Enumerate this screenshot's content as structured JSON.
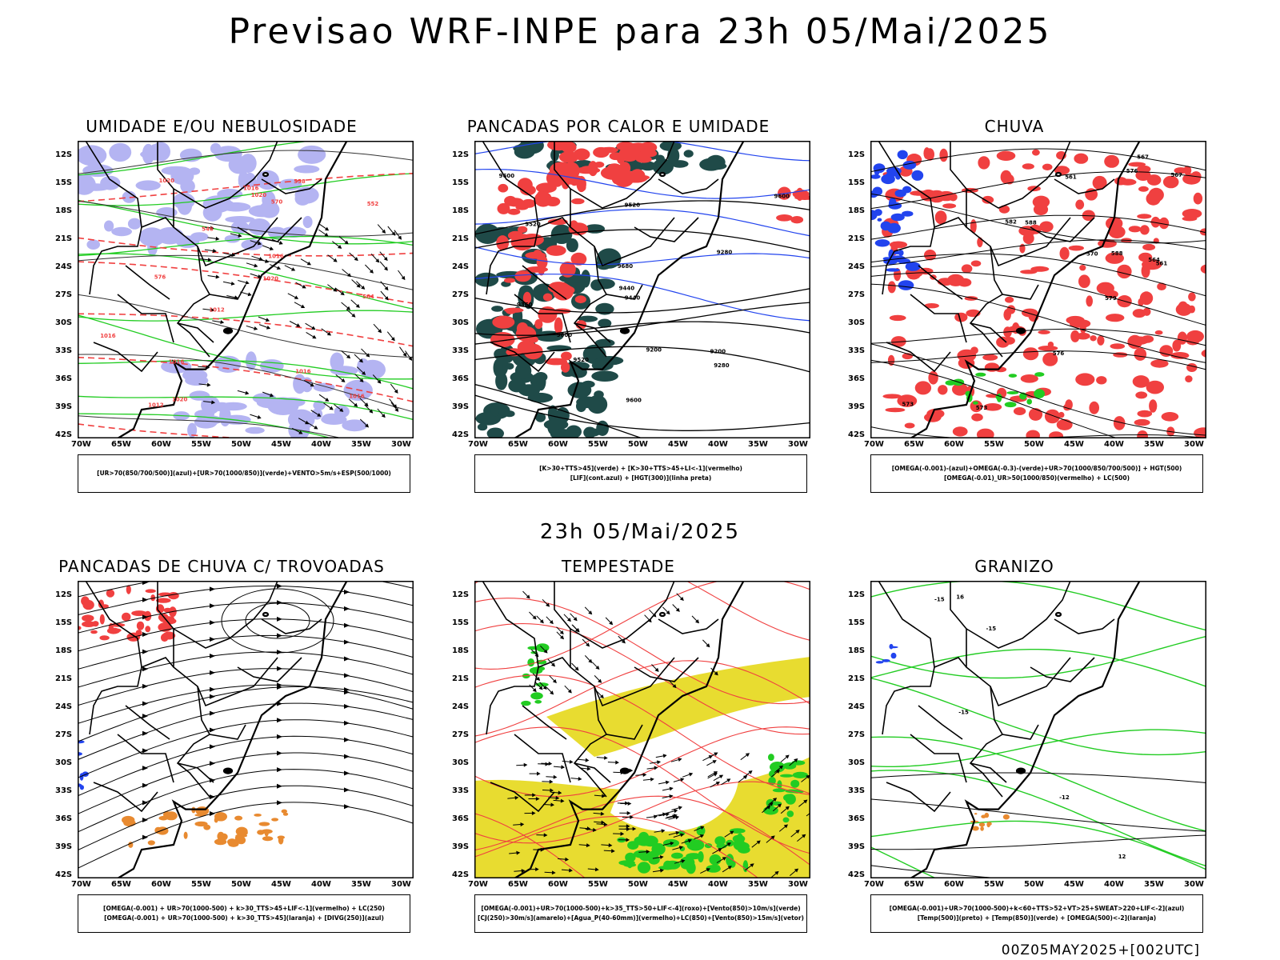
{
  "title": "Previsao WRF-INPE  para 23h 05/Mai/2025",
  "mid_date": "23h 05/Mai/2025",
  "footer": "00Z05MAY2025+[002UTC]",
  "colors": {
    "red": "#f04040",
    "green": "#22cc22",
    "blue": "#2244ee",
    "lavender": "#a8a8f0",
    "dark_teal": "#1f4a48",
    "yellow": "#e8dc30",
    "orange": "#e88a30",
    "black": "#000000"
  },
  "chart_data": [
    {
      "type": "map",
      "title": "UMIDADE E/OU NEBULOSIDADE",
      "legend": [
        "[UR>70(850/700/500)](azul)+[UR>70(1000/850)](verde)+VENTO>5m/s+ESP(500/1000)"
      ],
      "lat_ticks": [
        "12S",
        "15S",
        "18S",
        "21S",
        "24S",
        "27S",
        "30S",
        "33S",
        "36S",
        "39S",
        "42S"
      ],
      "lon_ticks": [
        "70W",
        "65W",
        "60W",
        "55W",
        "50W",
        "45W",
        "40W",
        "35W",
        "30W"
      ],
      "contour_labels": [
        "1012",
        "1012",
        "1016",
        "1016",
        "1020",
        "1016",
        "1020",
        "1020",
        "1016",
        "1020",
        "1016",
        "1016",
        "576",
        "570",
        "564",
        "558",
        "552",
        "546"
      ]
    },
    {
      "type": "map",
      "title": "PANCADAS POR CALOR E UMIDADE",
      "legend": [
        "[K>30+TTS>45](verde) + [K>30+TTS>45+LI<-1](vermelho)",
        "[LIF](cont.azul) + [HGT(300)](linha preta)"
      ],
      "lat_ticks": [
        "12S",
        "15S",
        "18S",
        "21S",
        "24S",
        "27S",
        "30S",
        "33S",
        "36S",
        "39S",
        "42S"
      ],
      "lon_ticks": [
        "70W",
        "65W",
        "60W",
        "55W",
        "50W",
        "45W",
        "40W",
        "35W",
        "30W"
      ],
      "contour_labels": [
        "9680",
        "9600",
        "9520",
        "9600",
        "9600",
        "9600",
        "9520",
        "9520",
        "9440",
        "9440",
        "9360",
        "9280",
        "9200",
        "9280",
        "9200"
      ]
    },
    {
      "type": "map",
      "title": "CHUVA",
      "legend": [
        "[OMEGA(-0.001)-(azul)+OMEGA(-0.3)-(verde)+UR>70(1000/850/700/500)] + HGT(500)",
        "[OMEGA(-0.01)_UR>50(1000/850)(vermelho) + LC(500)"
      ],
      "lat_ticks": [
        "12S",
        "15S",
        "18S",
        "21S",
        "24S",
        "27S",
        "30S",
        "33S",
        "36S",
        "39S",
        "42S"
      ],
      "lon_ticks": [
        "70W",
        "65W",
        "60W",
        "55W",
        "50W",
        "45W",
        "40W",
        "35W",
        "30W"
      ],
      "contour_labels": [
        "588",
        "588",
        "582",
        "579",
        "576",
        "573",
        "570",
        "567",
        "564",
        "561",
        "576",
        "573",
        "567",
        "561"
      ]
    },
    {
      "type": "map",
      "title": "PANCADAS DE CHUVA C/ TROVOADAS",
      "legend": [
        "[OMEGA(-0.001) + UR>70(1000-500) + k>30_TTS>45+LIF<-1](vermelho) + LC(250)",
        "[OMEGA(-0.001) + UR>70(1000-500) + k>30_TTS>45](laranja) + [DIVG(250)](azul)"
      ],
      "lat_ticks": [
        "12S",
        "15S",
        "18S",
        "21S",
        "24S",
        "27S",
        "30S",
        "33S",
        "36S",
        "39S",
        "42S"
      ],
      "lon_ticks": [
        "70W",
        "65W",
        "60W",
        "55W",
        "50W",
        "45W",
        "40W",
        "35W",
        "30W"
      ],
      "contour_labels": []
    },
    {
      "type": "map",
      "title": "TEMPESTADE",
      "legend": [
        "[OMEGA(-0.001)+UR>70(1000-500)+k>35_TTS>50+LIF<-4](roxo)+[Vento(850)>10m/s](verde)",
        "[CJ(250)>30m/s](amarelo)+[Agua_P(40-60mm)](vermelho)+LC(850)+[Vento(850)>15m/s](vetor)"
      ],
      "lat_ticks": [
        "12S",
        "15S",
        "18S",
        "21S",
        "24S",
        "27S",
        "30S",
        "33S",
        "36S",
        "39S",
        "42S"
      ],
      "lon_ticks": [
        "70W",
        "65W",
        "60W",
        "55W",
        "50W",
        "45W",
        "40W",
        "35W",
        "30W"
      ],
      "contour_labels": []
    },
    {
      "type": "map",
      "title": "GRANIZO",
      "legend": [
        "[OMEGA(-0.001)+UR>70(1000-500)+k<60+TTS>52+VT>25+SWEAT>220+LIF<-2](azul)",
        "[Temp(500)](preto) + [Temp(850)](verde) + [OMEGA(500)<-2](laranja)"
      ],
      "lat_ticks": [
        "12S",
        "15S",
        "18S",
        "21S",
        "24S",
        "27S",
        "30S",
        "33S",
        "36S",
        "39S",
        "42S"
      ],
      "lon_ticks": [
        "70W",
        "65W",
        "60W",
        "55W",
        "50W",
        "45W",
        "40W",
        "35W",
        "30W"
      ],
      "contour_labels": [
        "-12",
        "-15",
        "-15",
        "-15",
        "16",
        "12"
      ]
    }
  ]
}
